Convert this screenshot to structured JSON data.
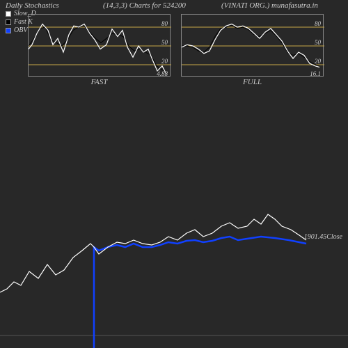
{
  "colors": {
    "background": "#282828",
    "text": "#cccccc",
    "slowD": "#ffffff",
    "fastK": "#000000",
    "obv": "#1040ff",
    "drawDownLine": "#c8a848",
    "gridline": "#c8a848",
    "panelBorder": "#888888",
    "bottomGrid": "#555555"
  },
  "header": {
    "title": "Daily Stochastics",
    "params": "(14,3,3) Charts for 524200",
    "company": "(VINATI ORG.) munafasutra.in"
  },
  "legend": [
    {
      "label": "Slow_D",
      "color": "#ffffff"
    },
    {
      "label": "Fast K",
      "color": "#000000"
    },
    {
      "label": "OBV",
      "color": "#1040ff"
    }
  ],
  "miniCharts": {
    "gridTicks": [
      80,
      50,
      20
    ],
    "fast": {
      "label": "FAST",
      "valueLabel": "4.88",
      "slowD": [
        [
          0,
          45
        ],
        [
          5,
          52
        ],
        [
          12,
          70
        ],
        [
          20,
          85
        ],
        [
          28,
          75
        ],
        [
          35,
          52
        ],
        [
          42,
          62
        ],
        [
          50,
          40
        ],
        [
          58,
          68
        ],
        [
          65,
          82
        ],
        [
          72,
          80
        ],
        [
          80,
          85
        ],
        [
          88,
          70
        ],
        [
          95,
          60
        ],
        [
          103,
          45
        ],
        [
          112,
          52
        ],
        [
          120,
          77
        ],
        [
          128,
          65
        ],
        [
          135,
          75
        ],
        [
          142,
          48
        ],
        [
          150,
          32
        ],
        [
          158,
          50
        ],
        [
          165,
          40
        ],
        [
          172,
          45
        ],
        [
          178,
          28
        ],
        [
          185,
          10
        ],
        [
          192,
          18
        ],
        [
          198,
          5
        ]
      ],
      "fastK": [
        [
          0,
          50
        ],
        [
          8,
          62
        ],
        [
          16,
          78
        ],
        [
          24,
          80
        ],
        [
          32,
          60
        ],
        [
          40,
          55
        ],
        [
          48,
          50
        ],
        [
          56,
          60
        ],
        [
          64,
          75
        ],
        [
          72,
          80
        ],
        [
          80,
          82
        ],
        [
          88,
          72
        ],
        [
          96,
          62
        ],
        [
          104,
          55
        ],
        [
          112,
          62
        ],
        [
          120,
          70
        ],
        [
          128,
          68
        ],
        [
          136,
          65
        ],
        [
          144,
          50
        ],
        [
          152,
          42
        ],
        [
          160,
          45
        ],
        [
          168,
          40
        ],
        [
          176,
          35
        ],
        [
          184,
          18
        ],
        [
          192,
          12
        ],
        [
          198,
          8
        ]
      ]
    },
    "full": {
      "label": "FULL",
      "valueLabel": "16.1",
      "slowD": [
        [
          0,
          48
        ],
        [
          8,
          52
        ],
        [
          16,
          50
        ],
        [
          24,
          45
        ],
        [
          32,
          38
        ],
        [
          40,
          42
        ],
        [
          48,
          60
        ],
        [
          56,
          75
        ],
        [
          64,
          82
        ],
        [
          72,
          85
        ],
        [
          80,
          80
        ],
        [
          88,
          82
        ],
        [
          96,
          78
        ],
        [
          104,
          70
        ],
        [
          112,
          62
        ],
        [
          120,
          72
        ],
        [
          128,
          78
        ],
        [
          136,
          68
        ],
        [
          144,
          58
        ],
        [
          152,
          42
        ],
        [
          160,
          30
        ],
        [
          168,
          40
        ],
        [
          176,
          35
        ],
        [
          184,
          22
        ],
        [
          192,
          18
        ],
        [
          198,
          16
        ]
      ],
      "fastK": [
        [
          0,
          50
        ],
        [
          8,
          50
        ],
        [
          16,
          48
        ],
        [
          24,
          42
        ],
        [
          32,
          40
        ],
        [
          40,
          48
        ],
        [
          48,
          65
        ],
        [
          56,
          78
        ],
        [
          64,
          80
        ],
        [
          72,
          83
        ],
        [
          80,
          78
        ],
        [
          88,
          80
        ],
        [
          96,
          76
        ],
        [
          104,
          68
        ],
        [
          112,
          65
        ],
        [
          120,
          70
        ],
        [
          128,
          75
        ],
        [
          136,
          66
        ],
        [
          144,
          55
        ],
        [
          152,
          40
        ],
        [
          160,
          35
        ],
        [
          168,
          38
        ],
        [
          176,
          32
        ],
        [
          184,
          25
        ],
        [
          192,
          20
        ],
        [
          198,
          18
        ]
      ]
    }
  },
  "mainChart": {
    "valueLabel": "1901.45Close",
    "obvDropX": 135,
    "close": [
      [
        0,
        290
      ],
      [
        10,
        285
      ],
      [
        20,
        275
      ],
      [
        30,
        280
      ],
      [
        42,
        260
      ],
      [
        55,
        270
      ],
      [
        68,
        250
      ],
      [
        80,
        265
      ],
      [
        92,
        258
      ],
      [
        105,
        240
      ],
      [
        118,
        230
      ],
      [
        130,
        220
      ],
      [
        135,
        225
      ],
      [
        142,
        235
      ],
      [
        155,
        225
      ],
      [
        168,
        218
      ],
      [
        180,
        220
      ],
      [
        192,
        215
      ],
      [
        205,
        220
      ],
      [
        218,
        222
      ],
      [
        230,
        218
      ],
      [
        242,
        210
      ],
      [
        255,
        215
      ],
      [
        268,
        205
      ],
      [
        280,
        200
      ],
      [
        292,
        210
      ],
      [
        305,
        205
      ],
      [
        318,
        195
      ],
      [
        330,
        190
      ],
      [
        342,
        198
      ],
      [
        355,
        195
      ],
      [
        365,
        185
      ],
      [
        375,
        192
      ],
      [
        385,
        178
      ],
      [
        395,
        185
      ],
      [
        405,
        195
      ],
      [
        418,
        200
      ],
      [
        430,
        208
      ],
      [
        440,
        215
      ]
    ],
    "obv": [
      [
        135,
        370
      ],
      [
        135,
        225
      ],
      [
        142,
        230
      ],
      [
        155,
        225
      ],
      [
        168,
        222
      ],
      [
        180,
        225
      ],
      [
        192,
        220
      ],
      [
        205,
        225
      ],
      [
        218,
        225
      ],
      [
        230,
        222
      ],
      [
        242,
        218
      ],
      [
        255,
        220
      ],
      [
        268,
        216
      ],
      [
        280,
        215
      ],
      [
        292,
        218
      ],
      [
        305,
        216
      ],
      [
        318,
        212
      ],
      [
        330,
        210
      ],
      [
        342,
        215
      ],
      [
        355,
        213
      ],
      [
        375,
        210
      ],
      [
        395,
        212
      ],
      [
        415,
        215
      ],
      [
        430,
        218
      ],
      [
        440,
        220
      ]
    ],
    "bottomGridY": 352
  }
}
